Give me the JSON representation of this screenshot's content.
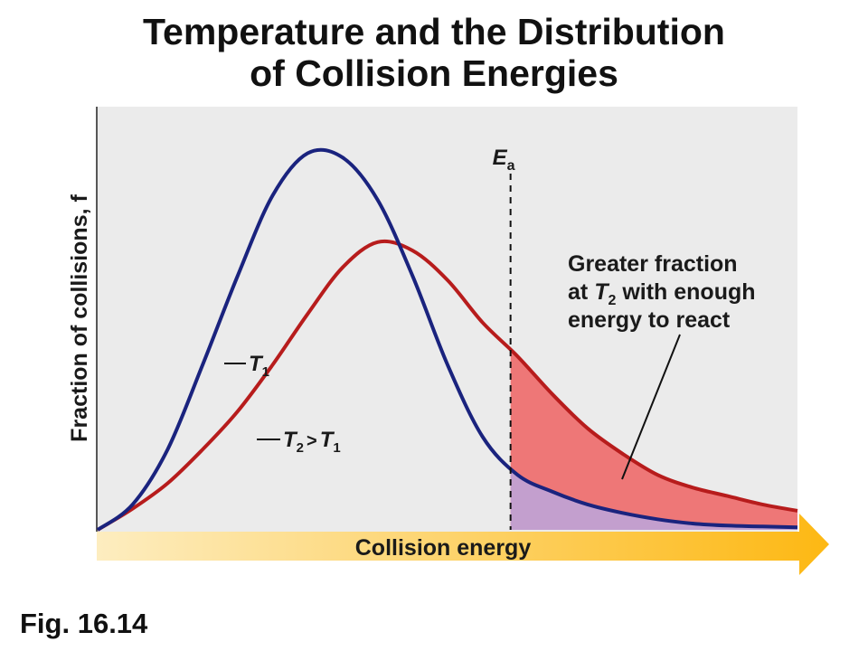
{
  "title": {
    "line1": "Temperature and the Distribution",
    "line2": "of Collision Energies"
  },
  "caption": "Fig. 16.14",
  "chart_data": {
    "type": "line",
    "title": "Temperature and the Distribution of Collision Energies",
    "xlabel": "Collision energy",
    "ylabel": "Fraction of collisions, f",
    "xlim": [
      0,
      10
    ],
    "ylim": [
      0,
      10
    ],
    "grid": false,
    "activation_energy": {
      "label": "E",
      "subscript": "a",
      "x": 5.9
    },
    "series": [
      {
        "name": "T1",
        "color": "#1a237e",
        "x": [
          0,
          0.5,
          1,
          1.5,
          2,
          2.5,
          3,
          3.5,
          4,
          4.5,
          5,
          5.5,
          6,
          6.5,
          7,
          7.5,
          8,
          8.5,
          9,
          9.5,
          10
        ],
        "y": [
          0,
          0.6,
          1.9,
          3.9,
          6.0,
          7.9,
          8.9,
          8.8,
          7.8,
          6.0,
          3.9,
          2.2,
          1.3,
          0.9,
          0.6,
          0.4,
          0.25,
          0.15,
          0.1,
          0.08,
          0.06
        ]
      },
      {
        "name": "T2 > T1",
        "color": "#b71c1c",
        "x": [
          0,
          0.5,
          1,
          1.5,
          2,
          2.5,
          3,
          3.5,
          4,
          4.5,
          5,
          5.5,
          6,
          6.5,
          7,
          7.5,
          8,
          8.5,
          9,
          9.5,
          10
        ],
        "y": [
          0,
          0.5,
          1.1,
          1.9,
          2.8,
          3.9,
          5.1,
          6.2,
          6.8,
          6.6,
          5.9,
          4.9,
          4.1,
          3.2,
          2.4,
          1.8,
          1.3,
          1.0,
          0.8,
          0.6,
          0.45
        ]
      }
    ],
    "annotations": {
      "t1_label": {
        "main": "T",
        "sub": "1"
      },
      "t2_label": {
        "main": "T",
        "sub": "2",
        "rel": ">",
        "main2": "T",
        "sub2": "1"
      },
      "callout": {
        "line1": "Greater fraction",
        "line2_pre": "at ",
        "line2_T": "T",
        "line2_sub": "2",
        "line2_post": " with enough",
        "line3": "energy to react"
      }
    },
    "colors": {
      "plot_background": "#ebebeb",
      "area_t2": "#ee7777",
      "area_t1": "#c39fce",
      "axis_arrow_start": "#fdedc0",
      "axis_arrow_end": "#fdb813"
    }
  }
}
